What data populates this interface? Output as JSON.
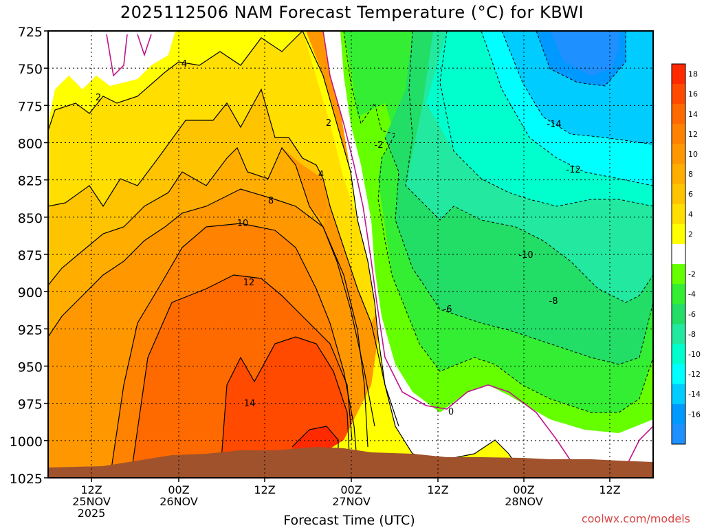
{
  "title": "2025112506 NAM Forecast Temperature (°C) for KBWI",
  "credit": "coolwx.com/models",
  "chart_data": {
    "type": "heatmap",
    "title": "2025112506 NAM Forecast Temperature (°C) for KBWI",
    "xlabel": "Forecast Time (UTC)",
    "ylabel": "",
    "y_scale": "pressure",
    "y_range": [
      1025,
      725
    ],
    "y_ticks": [
      "725",
      "750",
      "775",
      "800",
      "825",
      "850",
      "875",
      "900",
      "925",
      "950",
      "975",
      "1000",
      "1025"
    ],
    "x_ticks": [
      {
        "line1": "12Z",
        "line2": "25NOV",
        "line3": "2025"
      },
      {
        "line1": "00Z",
        "line2": "26NOV",
        "line3": ""
      },
      {
        "line1": "12Z",
        "line2": "",
        "line3": ""
      },
      {
        "line1": "00Z",
        "line2": "27NOV",
        "line3": ""
      },
      {
        "line1": "12Z",
        "line2": "",
        "line3": ""
      },
      {
        "line1": "00Z",
        "line2": "28NOV",
        "line3": ""
      },
      {
        "line1": "12Z",
        "line2": "",
        "line3": ""
      }
    ],
    "grid": true,
    "colorbar": {
      "position": "right",
      "labels": [
        "18",
        "16",
        "14",
        "12",
        "10",
        "8",
        "6",
        "4",
        "2",
        "-2",
        "-4",
        "-6",
        "-8",
        "-10",
        "-12",
        "-14",
        "-16"
      ],
      "colors": [
        "#ff2a00",
        "#ff4a00",
        "#ff6a00",
        "#ff8200",
        "#ff9800",
        "#ffae00",
        "#ffc400",
        "#ffde00",
        "#ffff00",
        "#ffffff",
        "#66ff00",
        "#33ee33",
        "#22dd66",
        "#22e8a0",
        "#00ffcc",
        "#00ffff",
        "#00ccff",
        "#0099ff",
        "#1e90ff"
      ]
    },
    "contour_labels": [
      "2",
      "4",
      "4",
      "2",
      "-2",
      "8",
      "10",
      "12",
      "14",
      "-14",
      "-12",
      "-10",
      "-8",
      "-6",
      "0"
    ],
    "terrain_color": "#a0522d"
  }
}
